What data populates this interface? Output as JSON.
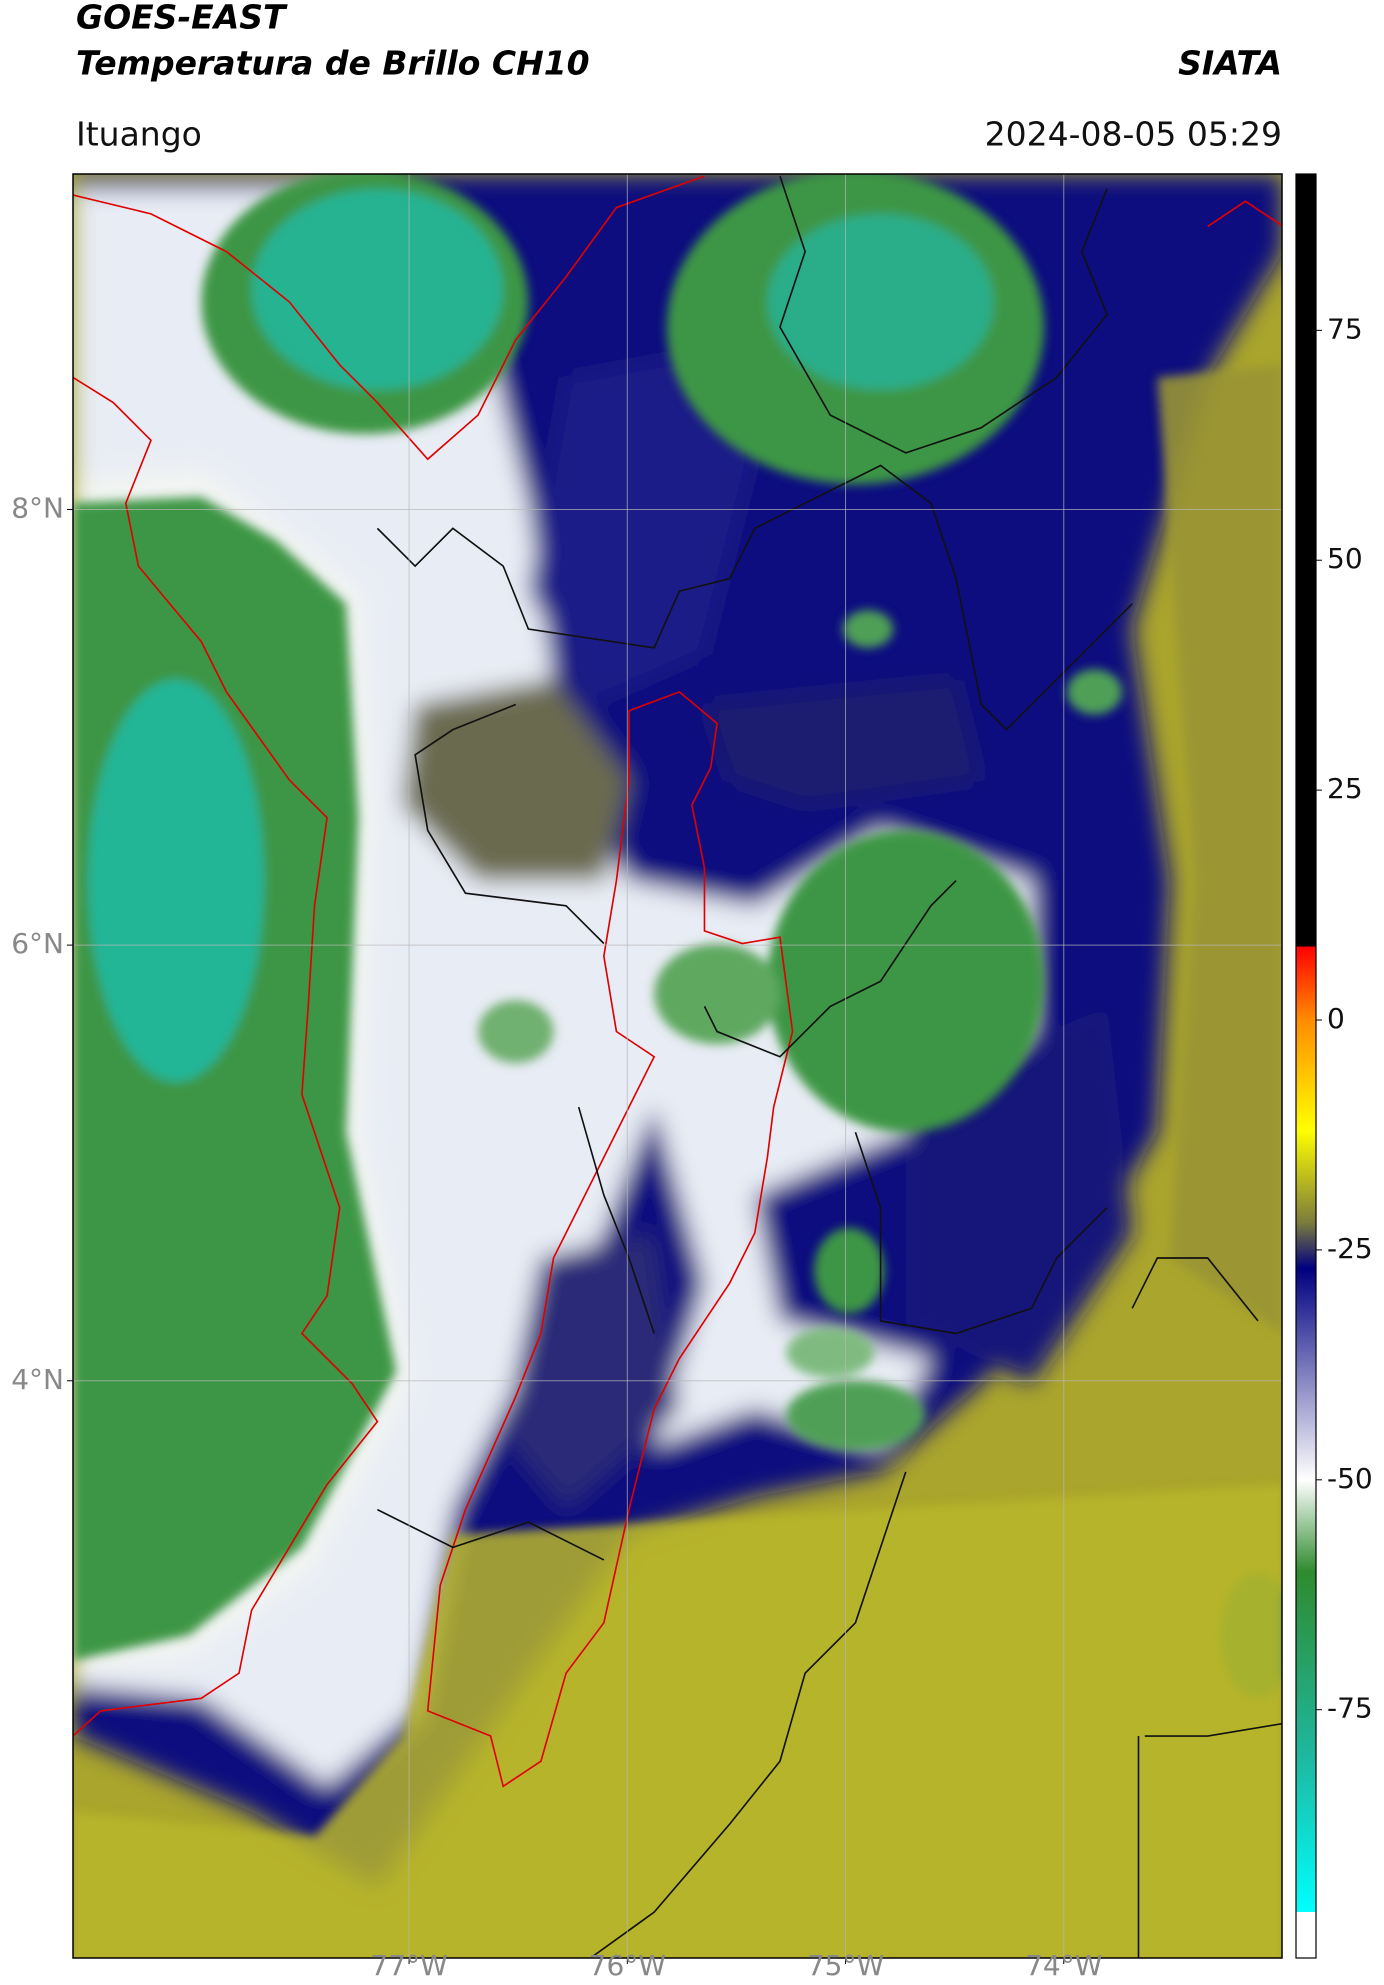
{
  "chart_data": {
    "type": "map",
    "title": "GOES-EAST",
    "subtitle": "Temperatura de Brillo CH10",
    "source": "SIATA",
    "location": "Ituango",
    "datetime": "2024-08-05 05:29",
    "xlim": [
      -78.54,
      -73.0
    ],
    "ylim": [
      1.35,
      9.54
    ],
    "xticks": [
      {
        "value": -77,
        "label": "77°W"
      },
      {
        "value": -76,
        "label": "76°W"
      },
      {
        "value": -75,
        "label": "75°W"
      },
      {
        "value": -74,
        "label": "74°W"
      }
    ],
    "yticks": [
      {
        "value": 4,
        "label": "4°N"
      },
      {
        "value": 6,
        "label": "6°N"
      },
      {
        "value": 8,
        "label": "8°N"
      }
    ],
    "grid": true,
    "grid_color": "#b8b8b8",
    "colorbar": {
      "clim": [
        -102,
        92
      ],
      "ticks": [
        -75,
        -50,
        -25,
        0,
        25,
        50,
        75
      ],
      "stops": [
        {
          "value": 92,
          "color": "#000000"
        },
        {
          "value": 8,
          "color": "#000000"
        },
        {
          "value": 8,
          "color": "#ff0000"
        },
        {
          "value": 0,
          "color": "#ff8c00"
        },
        {
          "value": -12,
          "color": "#ffff00"
        },
        {
          "value": -22,
          "color": "#7c7c3c"
        },
        {
          "value": -27,
          "color": "#000080"
        },
        {
          "value": -50,
          "color": "#ffffff"
        },
        {
          "value": -60,
          "color": "#2e8b2e"
        },
        {
          "value": -80,
          "color": "#1fb79f"
        },
        {
          "value": -97,
          "color": "#00ffff"
        },
        {
          "value": -97,
          "color": "#ffffff"
        },
        {
          "value": -102,
          "color": "#ffffff"
        }
      ]
    }
  }
}
